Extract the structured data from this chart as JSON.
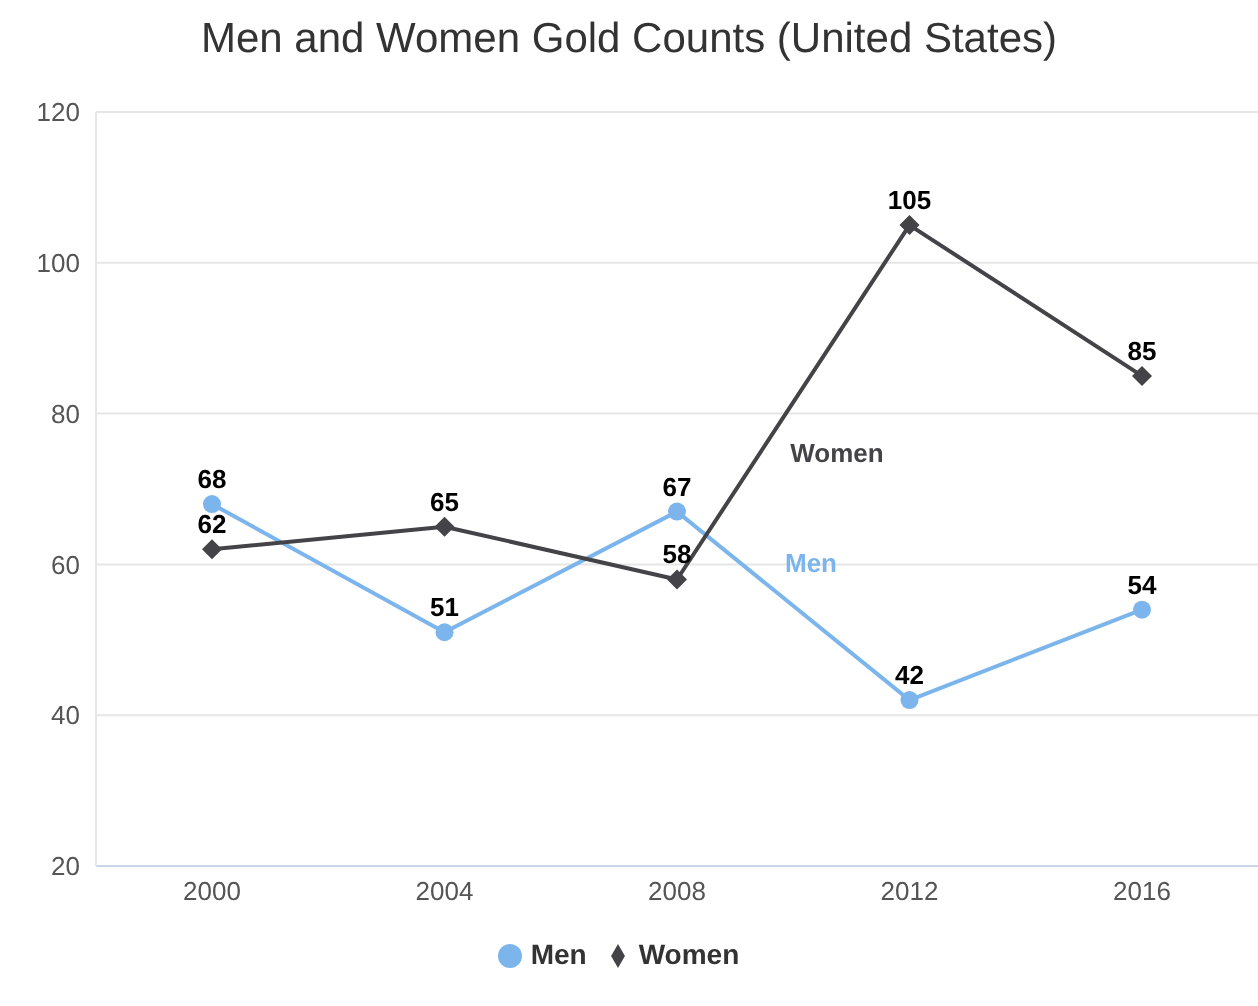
{
  "chart_data": {
    "type": "line",
    "title": "Men and Women Gold Counts (United States)",
    "categories": [
      "2000",
      "2004",
      "2008",
      "2012",
      "2016"
    ],
    "series": [
      {
        "name": "Men",
        "color": "#7cb5ec",
        "marker": "circle",
        "values": [
          68,
          51,
          67,
          42,
          54
        ]
      },
      {
        "name": "Women",
        "color": "#434348",
        "marker": "diamond",
        "values": [
          62,
          65,
          58,
          105,
          85
        ]
      }
    ],
    "ylim": [
      20,
      120
    ],
    "yticks": [
      20,
      40,
      60,
      80,
      100,
      120
    ],
    "grid": "y",
    "legend": "bottom",
    "data_labels": true,
    "line_style": "solid"
  }
}
